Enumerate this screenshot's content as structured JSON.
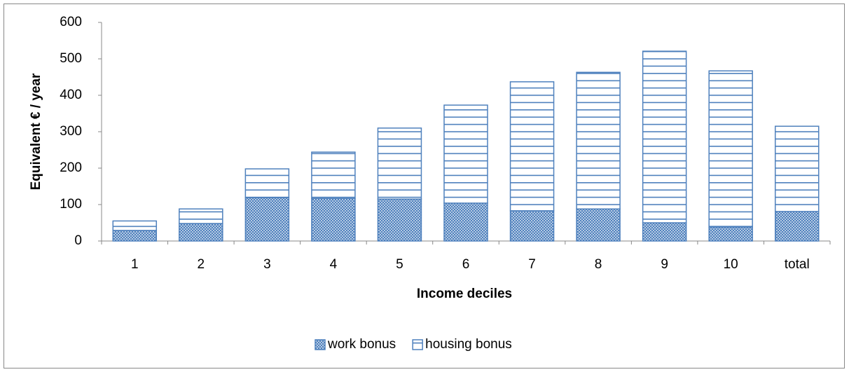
{
  "chart_data": {
    "type": "stacked_bar",
    "x_label": "Income deciles",
    "y_label": "Equivalent € / year",
    "categories": [
      "1",
      "2",
      "3",
      "4",
      "5",
      "6",
      "7",
      "8",
      "9",
      "10",
      "total"
    ],
    "series": [
      {
        "name": "work bonus",
        "color": "#4f81bd",
        "pattern": "dots",
        "values": [
          29,
          48,
          119,
          117,
          115,
          104,
          83,
          88,
          50,
          38,
          81
        ]
      },
      {
        "name": "housing bonus",
        "color": "#4f81bd",
        "pattern": "hlines",
        "values": [
          26,
          40,
          79,
          127,
          195,
          269,
          354,
          375,
          471,
          429,
          234
        ]
      }
    ],
    "ylim": [
      0,
      600
    ],
    "yticks": [
      0,
      100,
      200,
      300,
      400,
      500,
      600
    ],
    "legend": "bottom"
  }
}
